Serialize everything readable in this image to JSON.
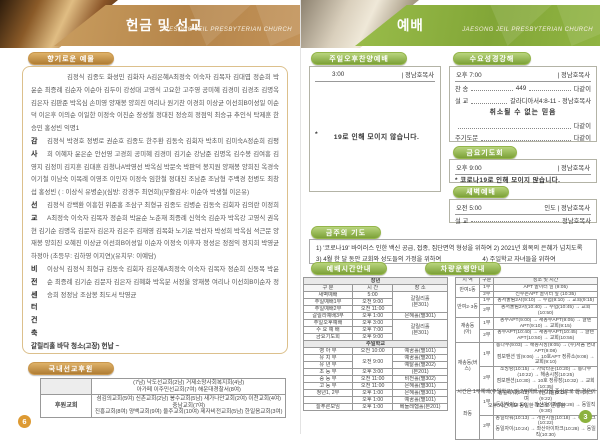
{
  "colors": {
    "accent_gold": "#b5854a",
    "accent_green": "#82a637",
    "page6_circle": "#dd9a33",
    "page3_circle": "#8cb23e"
  },
  "left": {
    "title": "헌금 및 선교",
    "church_en": "JAESONG JEIL PRESBYTERIAN CHURCH",
    "badge_offerings": "향기로운 예물",
    "labels": {
      "thanks": "감\n사",
      "mission": "선 교",
      "vision": "비 전\n센 터\n건 축"
    },
    "sections": {
      "tithe": "김정식 김종도 화성민 김화자      A김은혜A최정숙 이숙자 김복자 김대엽 정순희 박윤순 최증례 김순자 이순아 김두이 강성대 고영식 고요한 고주영 공미혜 김경미 김경조 김명옥 김은자 김판준 박옥심 손미영 양재봉 양희진 여리나 원기찬 이경희 이상균 이선희B이성일 이순덕 이은후 이의순 이일한 이정숙 이진순 장성철 정대진 정승희 정점익 최승규 추인식 탁제훈 한승민 홍성빈 익명1",
      "thanks": "김정식 박경호 정병로 권순호 김종도 한주환 김동숙 김회자 박초미 김미숙A정순희 김평희 이혜자 윤은순 안선영 고경희 공미혜 김경미 김기순 강남준 김명옥 김수봉 김여흥 김영지 김정미 김지훈 김대훈 김청나A박영선 박옥심 박문숙 박판덕 봉지원 양재봉 양희진 옥경숙 이기철 이남숙 이복례 이영조 이인자 이정숙 임한철 정대진 조남준 조남형 주백경 천병도 최창섭 홍성빈",
      "thanks_note": "(  : 이상식 유병순)(심방: 강경주 최연희)(부활감사: 이순아 박생철 이은유)",
      "mission": "김정식 강백환 이흥헌 위준홍 조삼구 최형규 김종도 김병순 김동숙 김회자 김의란 이정희A최정숙 이숙자 김복자 정순희 박윤순 노춘재 최증례 신혁숙 김순자 박옥강 고영식 권옥현 김기순 김명옥 김문자 김은자 김은주 김재영 김복화 노기운 박선자 박성희 박옥심 석근문 양재봉 양희진 오혜진 이상균 이선희B이성일 이순자 이정숙 이후자 정성은 정점익 정지희 박영균 하정아",
      "mission_note": "(초등부: 김하영 이지연)(유치부: 이예담)",
      "vision": "이상식 김정식 최형규 김동숙 김회자 김은혜A최정숙 이숙자 김복자 정순희 신동복 박윤순 최증례 김기순 김문자 김은자 김혜화 박옥분 서정울 양재봉 여리나 이선희B이순자 정승희 정정남 조삼봉 최도서 탁영균"
    },
    "donation_line": "갈릴리홀 바닥 청소(고장) 헌납 ~",
    "support_badge": "국내선교후원",
    "support_table": {
      "widths": [
        "21%",
        "79%"
      ],
      "rows": [
        [
          {
            "t": "",
            "cls": "lbl gray"
          },
          {
            "t": "(7남)  낙도선교회(2남) 거제소망사회복지회(4남)\n아가페 이주민선교회(7여) 해운대경찰서(8여)"
          }
        ],
        [
          {
            "t": "후원교회",
            "cls": "lbl"
          },
          {
            "t": "섬김의교회(5여) 신촌교회(2남) 봉수교회(5남) 새가나안교회(2여) 이천교회(4여) 중남교회(7여)\n진흥교회(8여) 양백교회(9여) 울주교회(10여) 제자비전교회(5남) 한일음교회(3여)"
          }
        ]
      ]
    },
    "page_number": "6"
  },
  "right": {
    "title": "예배",
    "church_en": "JAESONG JEIL PRESBYTERIAN CHURCH",
    "sunday_afternoon": {
      "badge": "주일오후찬양예배",
      "time": "3:00",
      "leader": "| 정남호목사",
      "notice_star": "*",
      "notice": "19로 인해 모이지 않습니다."
    },
    "wednesday": {
      "badge": "수요성경강해",
      "time": "오후 7:00",
      "leader": "| 정남호목사",
      "hymn_label": "찬    송",
      "hymn_no": "449",
      "all1": "다같이",
      "sermon_label": "설    교",
      "passage": "갈라디아서4:8-11 -",
      "pastor": "정남호목사",
      "sermon_title": "취소될 수 없는 믿음",
      "all2": "다같이",
      "lords_label": "주기도문",
      "all3": "다같이"
    },
    "friday": {
      "badge": "금요기도회",
      "time": "오후 9:00",
      "leader": "| 정남호목사",
      "notice": "* 코로나19로 인해 모이지 않습니다."
    },
    "dawn": {
      "badge": "새벽예배",
      "time": "오전 5:00",
      "leader": "인도 | 정남호목사",
      "sermon_label": "설    교",
      "pastor": "정남호목사"
    },
    "prayer": {
      "badge": "금주의 기도",
      "line1": "1) '코로나19' 바이러스 인한 백신 공급, 접종, 집단면역 형성을 위하여  2) 2021년 회복의 은혜가 넘치도록",
      "line2": "3) 4월 한 달 동안 교회와 성도들의 가정을 위하여                        4) 주일학교 자녀들을 위하여"
    },
    "worship_times": {
      "badge": "예배시간안내",
      "widths": [
        "34%",
        "28%",
        "38%"
      ],
      "rows": [
        [
          {
            "t": "장년",
            "cs": 3,
            "cls": "gh"
          }
        ],
        [
          {
            "t": "구 분",
            "cls": "hd"
          },
          {
            "t": "시 간",
            "cls": "hd"
          },
          {
            "t": "장 소",
            "cls": "hd"
          }
        ],
        [
          "새벽예배",
          "5:00",
          {
            "t": "갈릴리홀\n(본301)",
            "rs": 3
          }
        ],
        [
          "주일예배1부",
          "오전 9:00"
        ],
        [
          "주일예배2부",
          "오전 11:00"
        ],
        [
          "갈릴리예배3부",
          "오후 1:00",
          "은혜홀(별301)"
        ],
        [
          "주일오후예배",
          "오후 3:00",
          {
            "t": "갈릴리홀\n(본301)",
            "rs": 3
          }
        ],
        [
          "수 요 예 배",
          "오후 7:00"
        ],
        [
          "금요기도회",
          "오후 9:00"
        ],
        [
          {
            "t": "주일학교",
            "cs": 3,
            "cls": "gh"
          }
        ],
        [
          "영 아 부",
          "오전 10:00",
          "예꿈홀(별101)"
        ],
        [
          "유 치 부",
          {
            "t": "오전 9:00",
            "rs": 2
          },
          "예꿈홀(별201)"
        ],
        [
          "유 년 부",
          "예닮홀(별202)"
        ],
        [
          "초 등 부",
          "오후 3:00",
          "(본201)"
        ],
        [
          "중 등 부",
          "오전 11:00",
          "비전홀(별302)"
        ],
        [
          "고 등 부",
          "오전 11:00",
          "은혜홀(별301)"
        ],
        [
          "청년1, 2부",
          "오후 1:00",
          "은혜홀(별301)"
        ],
        [
          "",
          "오후 1:00",
          "예꿈홀(별101)"
        ],
        [
          "늘푸른모임",
          "오후 1:00",
          "베들레헴홀(본201)"
        ]
      ]
    },
    "bus": {
      "badge": "차량운행안내",
      "widths": [
        "17%",
        "10%",
        "73%"
      ],
      "rows": [
        [
          {
            "t": "지 역",
            "cls": "hd"
          },
          {
            "t": "구분",
            "cls": "hd"
          },
          {
            "t": "장소 및 시간",
            "cls": "hd"
          }
        ],
        [
          {
            "t": "반여1동",
            "rs": 2
          },
          "1부",
          "APT 놀이터 앞 (9:05)"
        ],
        [
          "2부",
          "선수촌APT 놀이터 앞 (10:35)"
        ],
        [
          {
            "t": "반여2·3동",
            "rs": 2
          },
          "1부",
          "동서울림2차(9:10) → 수협(9:10) → 교회(9:15)"
        ],
        [
          "2부",
          "동서울림2차(10:40) → 수협(10:45) → 교회(10:50)"
        ],
        [
          {
            "t": "재송동(아)",
            "rs": 2
          },
          "1부",
          "동부APT(9:00) → 새동부APT(9:05) → 글렌APT(9:10) → 교회(9:15)"
        ],
        [
          "2부",
          "동부APT(10:40) → 새동부APT(10:45) → 글렌APT(10:50) → 교회(10:55)"
        ],
        [
          {
            "t": "재송동(버스)",
            "rs": 2
          },
          "1부",
          "통나무(9:03) → 해송시장(9:05) → (주)처음 현대APT(9:08)\n점보맨션 앞(9:06) → 10호APT 정류소(9:08) → 교회(9:10)"
        ],
        [
          "2부",
          "소망탕(10:15) → 가락타운(10:20) → 통나무(10:22) → 해송시장(10:25)\n점보맨션(10:30) → 10호 정류장(10:32) → 교회(10:35)"
        ],
        [
          {
            "t": "좌동",
            "rs": 2
          },
          "1부",
          "동일타워(9:13) → 개원시설(9:18) → 아이파크(9:22)\n동일자이(9:24) → 좌산아이파크(9:28) → 동일직(9:30)"
        ],
        [
          "2부",
          "동일타워(10:13) → 개원시설(10:18) → 아이파크(10:22)\n동일자이(10:24) → 좌산아이파크(10:28) → 동일직(10:30)"
        ]
      ],
      "note": "시간은 1부예배(주일학교) 및 2부예배 시간을 중심으로 한 경우이며\n오후 시간에도 동일한 코스로 운행됨"
    },
    "page_number": "3"
  }
}
